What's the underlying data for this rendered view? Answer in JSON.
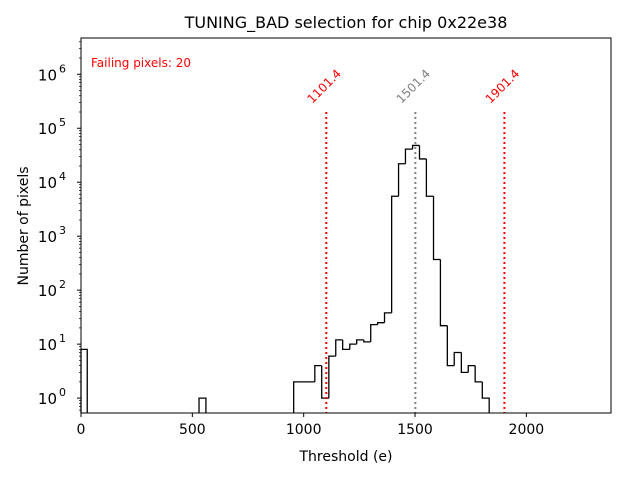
{
  "chart_data": {
    "type": "histogram",
    "title": "TUNING_BAD selection for chip 0x22e38",
    "xlabel": "Threshold (e)",
    "ylabel": "Number of pixels",
    "xlim": [
      0,
      2380
    ],
    "ylim": [
      0.53,
      4700000
    ],
    "yscale": "log",
    "grid": false,
    "x_ticks": [
      0,
      500,
      1000,
      1500,
      2000
    ],
    "x_tick_labels": [
      "0",
      "500",
      "1000",
      "1500",
      "2000"
    ],
    "y_ticks": [
      1,
      10,
      100,
      1000,
      10000,
      100000,
      1000000
    ],
    "y_tick_labels": [
      {
        "base": "10",
        "exp": "0"
      },
      {
        "base": "10",
        "exp": "1"
      },
      {
        "base": "10",
        "exp": "2"
      },
      {
        "base": "10",
        "exp": "3"
      },
      {
        "base": "10",
        "exp": "4"
      },
      {
        "base": "10",
        "exp": "5"
      },
      {
        "base": "10",
        "exp": "6"
      }
    ],
    "bins": [
      {
        "x0": 0,
        "x1": 28,
        "count": 8
      },
      {
        "x0": 530,
        "x1": 561,
        "count": 1
      },
      {
        "x0": 955,
        "x1": 1050,
        "count": 2
      },
      {
        "x0": 1050,
        "x1": 1081,
        "count": 4
      },
      {
        "x0": 1081,
        "x1": 1113,
        "count": 1
      },
      {
        "x0": 1113,
        "x1": 1144,
        "count": 6
      },
      {
        "x0": 1144,
        "x1": 1175,
        "count": 12
      },
      {
        "x0": 1175,
        "x1": 1207,
        "count": 8
      },
      {
        "x0": 1207,
        "x1": 1238,
        "count": 10
      },
      {
        "x0": 1238,
        "x1": 1270,
        "count": 12
      },
      {
        "x0": 1270,
        "x1": 1301,
        "count": 11
      },
      {
        "x0": 1301,
        "x1": 1332,
        "count": 23
      },
      {
        "x0": 1332,
        "x1": 1363,
        "count": 25
      },
      {
        "x0": 1363,
        "x1": 1395,
        "count": 38
      },
      {
        "x0": 1395,
        "x1": 1426,
        "count": 5500
      },
      {
        "x0": 1426,
        "x1": 1457,
        "count": 22000
      },
      {
        "x0": 1457,
        "x1": 1489,
        "count": 41000
      },
      {
        "x0": 1489,
        "x1": 1520,
        "count": 48000
      },
      {
        "x0": 1520,
        "x1": 1551,
        "count": 27000
      },
      {
        "x0": 1551,
        "x1": 1583,
        "count": 5500
      },
      {
        "x0": 1583,
        "x1": 1614,
        "count": 370
      },
      {
        "x0": 1614,
        "x1": 1645,
        "count": 22
      },
      {
        "x0": 1645,
        "x1": 1676,
        "count": 4
      },
      {
        "x0": 1676,
        "x1": 1708,
        "count": 7
      },
      {
        "x0": 1708,
        "x1": 1739,
        "count": 3
      },
      {
        "x0": 1739,
        "x1": 1770,
        "count": 4
      },
      {
        "x0": 1770,
        "x1": 1802,
        "count": 2
      },
      {
        "x0": 1802,
        "x1": 1833,
        "count": 1
      }
    ],
    "vlines": [
      {
        "x": 1101.4,
        "label": "1101.4",
        "color": "#ff0000",
        "style": "dotted"
      },
      {
        "x": 1501.4,
        "label": "1501.4",
        "color": "#808080",
        "style": "dotted"
      },
      {
        "x": 1901.4,
        "label": "1901.4",
        "color": "#ff0000",
        "style": "dotted"
      }
    ],
    "vline_top": 200000,
    "annotations": [
      {
        "text": "Failing pixels: 20",
        "color": "#ff0000",
        "position": "top-left"
      }
    ]
  }
}
